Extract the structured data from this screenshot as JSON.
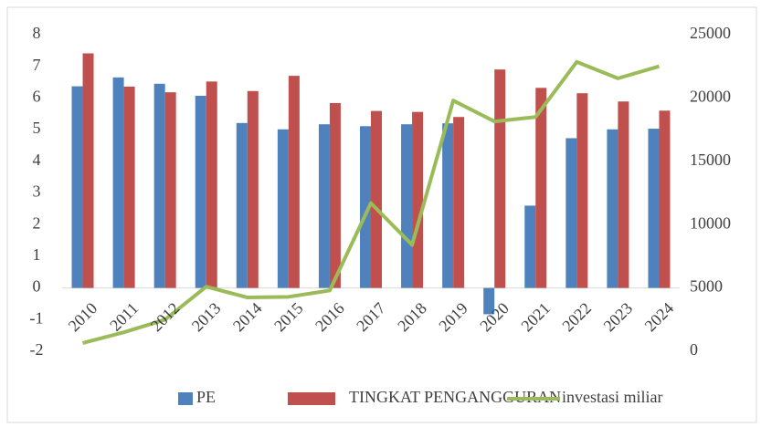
{
  "chart_data": {
    "type": "bar",
    "categories": [
      "2010",
      "2011",
      "2012",
      "2013",
      "2014",
      "2015",
      "2016",
      "2017",
      "2018",
      "2019",
      "2020",
      "2021",
      "2022",
      "2023",
      "2024"
    ],
    "series": [
      {
        "name": "PE",
        "color": "#4f81bd",
        "values": [
          6.37,
          6.65,
          6.45,
          6.07,
          5.21,
          5.01,
          5.17,
          5.11,
          5.17,
          5.2,
          -0.83,
          2.6,
          4.73,
          5.01,
          5.03
        ]
      },
      {
        "name": "TINGKAT PENGANGGURAN",
        "color": "#c0504d",
        "values": [
          7.41,
          6.36,
          6.18,
          6.52,
          6.22,
          6.7,
          5.84,
          5.59,
          5.56,
          5.4,
          6.9,
          6.32,
          6.15,
          5.89,
          5.6
        ]
      },
      {
        "name": "investasi miliar",
        "color": "#9bbb59",
        "type": "line",
        "axis": "y2",
        "values": [
          650,
          1500,
          2500,
          5100,
          4250,
          4300,
          4800,
          11700,
          8400,
          19800,
          18150,
          18500,
          22850,
          21550,
          22500
        ]
      }
    ],
    "ylim": [
      -2,
      8
    ],
    "yticks": [
      -2,
      -1,
      0,
      1,
      2,
      3,
      4,
      5,
      6,
      7,
      8
    ],
    "y2lim": [
      0,
      25000
    ],
    "y2ticks": [
      0,
      5000,
      10000,
      15000,
      20000,
      25000
    ],
    "legend": "bottom"
  }
}
